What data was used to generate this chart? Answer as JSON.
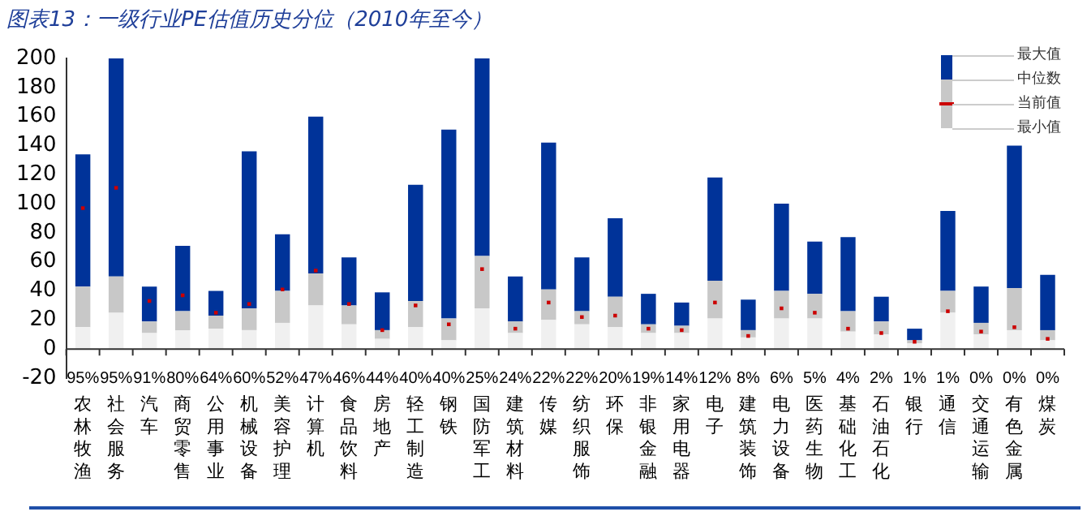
{
  "chart_data": {
    "type": "bar",
    "title": "图表13：一级行业PE估值历史分位（2010年至今）",
    "categories": [
      "农林牧渔",
      "社会服务",
      "汽车",
      "商贸零售",
      "公用事业",
      "机械设备",
      "美容护理",
      "计算机",
      "食品饮料",
      "房地产",
      "轻工制造",
      "钢铁",
      "国防军工",
      "建筑材料",
      "传媒",
      "纺织服饰",
      "环保",
      "非银金融",
      "家用电器",
      "电子",
      "建筑装饰",
      "电力设备",
      "医药生物",
      "基础化工",
      "石油石化",
      "银行",
      "通信",
      "交通运输",
      "有色金属",
      "煤炭"
    ],
    "stacked": true,
    "series": [
      {
        "color": "#f0f0f0",
        "values": [
          15,
          25,
          11,
          13,
          14,
          13,
          18,
          30,
          17,
          7,
          15,
          6,
          28,
          11,
          20,
          17,
          15,
          11,
          11,
          21,
          8,
          21,
          21,
          12,
          10,
          4,
          25,
          10,
          13,
          6
        ]
      },
      {
        "color": "#c8c8c8",
        "values": [
          28,
          25,
          8,
          13,
          9,
          15,
          22,
          22,
          13,
          6,
          18,
          15,
          36,
          8,
          21,
          9,
          21,
          6,
          5,
          26,
          5,
          19,
          17,
          14,
          9,
          2,
          15,
          8,
          29,
          7
        ]
      },
      {
        "color": "#003399",
        "values": [
          91,
          150,
          24,
          45,
          17,
          108,
          39,
          108,
          33,
          26,
          80,
          130,
          136,
          31,
          101,
          37,
          54,
          21,
          16,
          71,
          21,
          60,
          36,
          51,
          17,
          8,
          55,
          25,
          98,
          38
        ]
      },
      {
        "type": "scatter",
        "color": "#cc0000",
        "marker": "square",
        "values": [
          97,
          111,
          33,
          37,
          25,
          31,
          41,
          54,
          31,
          13,
          30,
          17,
          55,
          14,
          32,
          22,
          23,
          14,
          13,
          32,
          9,
          28,
          25,
          14,
          11,
          5,
          26,
          12,
          15,
          7
        ]
      }
    ],
    "ylim": [
      -20,
      200
    ],
    "yticks": [
      -20,
      0,
      20,
      40,
      60,
      80,
      100,
      120,
      140,
      160,
      180,
      200
    ],
    "annotations": [
      "最大值",
      "中位数",
      "当前值",
      "最小值",
      "95%",
      "95%",
      "91%",
      "80%",
      "64%",
      "60%",
      "52%",
      "47%",
      "46%",
      "44%",
      "40%",
      "40%",
      "25%",
      "24%",
      "22%",
      "22%",
      "20%",
      "19%",
      "14%",
      "12%",
      "8%",
      "6%",
      "5%",
      "4%",
      "2%",
      "1%",
      "1%",
      "0%",
      "0%",
      "0%"
    ]
  }
}
